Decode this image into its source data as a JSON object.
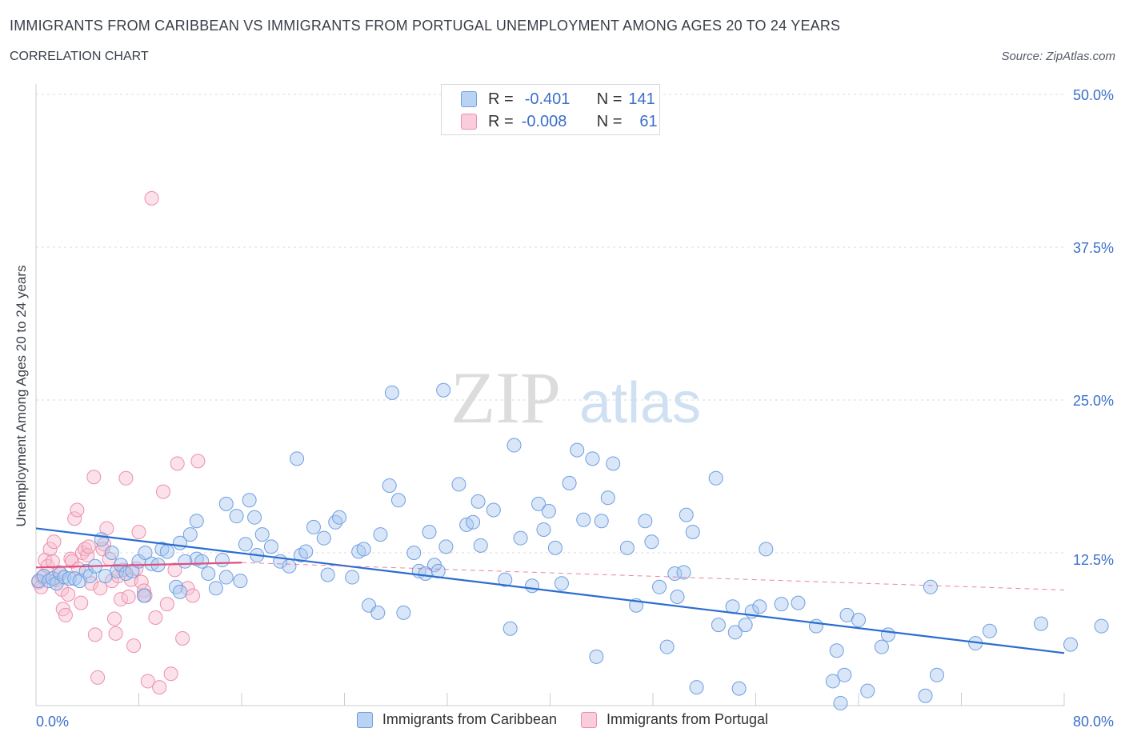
{
  "title": "IMMIGRANTS FROM CARIBBEAN VS IMMIGRANTS FROM PORTUGAL UNEMPLOYMENT AMONG AGES 20 TO 24 YEARS",
  "subtitle": "CORRELATION CHART",
  "source": "Source: ZipAtlas.com",
  "watermark": {
    "zip": "ZIP",
    "atlas": "atlas"
  },
  "legend_stats": [
    {
      "r_label": "R =",
      "r_value": "-0.401",
      "n_label": "N =",
      "n_value": "141"
    },
    {
      "r_label": "R =",
      "r_value": "-0.008",
      "n_label": "N =",
      "n_value": "61"
    }
  ],
  "colors": {
    "caribbean_fill": "#a8c8f0",
    "caribbean_stroke": "#6f9fe0",
    "caribbean_line": "#2a6dd0",
    "portugal_fill": "#f6bfd0",
    "portugal_stroke": "#ec8fac",
    "portugal_line": "#e0507e",
    "axis_text": "#3b6fc9",
    "grid": "#d8dbe0"
  },
  "chart_data": {
    "type": "scatter",
    "title": "IMMIGRANTS FROM CARIBBEAN VS IMMIGRANTS FROM PORTUGAL UNEMPLOYMENT AMONG AGES 20 TO 24 YEARS",
    "xlabel": "",
    "ylabel": "Unemployment Among Ages 20 to 24 years",
    "xlim": [
      0,
      80
    ],
    "ylim": [
      0,
      50
    ],
    "x_tick_labels": [
      "0.0%",
      "80.0%"
    ],
    "y_ticks": [
      12.5,
      25.0,
      37.5,
      50.0
    ],
    "y_tick_labels": [
      "12.5%",
      "25.0%",
      "37.5%",
      "50.0%"
    ],
    "grid": true,
    "legend": "top-center",
    "series": [
      {
        "name": "Immigrants from Caribbean",
        "trend": [
          [
            0,
            14.5
          ],
          [
            80,
            4.3
          ]
        ],
        "points": [
          [
            0.2,
            10.2
          ],
          [
            0.6,
            10.6
          ],
          [
            1.0,
            10.2
          ],
          [
            1.3,
            10.4
          ],
          [
            1.6,
            10.0
          ],
          [
            1.9,
            10.8
          ],
          [
            2.2,
            10.5
          ],
          [
            2.6,
            10.4
          ],
          [
            3.0,
            10.4
          ],
          [
            3.4,
            10.2
          ],
          [
            3.9,
            11.0
          ],
          [
            4.2,
            10.6
          ],
          [
            4.6,
            11.4
          ],
          [
            5.1,
            13.6
          ],
          [
            5.4,
            10.6
          ],
          [
            5.9,
            12.5
          ],
          [
            6.3,
            11.0
          ],
          [
            6.6,
            11.5
          ],
          [
            7.0,
            10.8
          ],
          [
            7.5,
            11.0
          ],
          [
            8.0,
            11.8
          ],
          [
            8.5,
            12.5
          ],
          [
            9.0,
            11.6
          ],
          [
            9.5,
            11.5
          ],
          [
            9.8,
            12.8
          ],
          [
            10.2,
            12.6
          ],
          [
            11.2,
            13.3
          ],
          [
            12.0,
            14.0
          ],
          [
            12.5,
            12.0
          ],
          [
            12.9,
            11.8
          ],
          [
            11.6,
            11.8
          ],
          [
            12.5,
            15.1
          ],
          [
            13.4,
            10.8
          ],
          [
            14.0,
            9.6
          ],
          [
            14.5,
            11.9
          ],
          [
            10.9,
            9.7
          ],
          [
            11.2,
            9.3
          ],
          [
            8.4,
            9.0
          ],
          [
            17.2,
            12.3
          ],
          [
            17.6,
            14.0
          ],
          [
            18.3,
            13.0
          ],
          [
            19.0,
            11.8
          ],
          [
            19.7,
            11.4
          ],
          [
            16.6,
            16.8
          ],
          [
            17.0,
            15.4
          ],
          [
            16.3,
            13.2
          ],
          [
            14.8,
            16.5
          ],
          [
            15.6,
            15.5
          ],
          [
            15.9,
            10.2
          ],
          [
            14.8,
            10.5
          ],
          [
            20.3,
            20.2
          ],
          [
            20.6,
            12.3
          ],
          [
            21.0,
            12.6
          ],
          [
            21.6,
            14.6
          ],
          [
            22.4,
            13.7
          ],
          [
            22.7,
            10.7
          ],
          [
            23.3,
            15.0
          ],
          [
            23.6,
            15.4
          ],
          [
            24.6,
            10.5
          ],
          [
            25.1,
            12.6
          ],
          [
            25.5,
            12.8
          ],
          [
            25.9,
            8.2
          ],
          [
            26.6,
            7.6
          ],
          [
            26.8,
            14.0
          ],
          [
            27.5,
            18.0
          ],
          [
            27.7,
            25.6
          ],
          [
            28.2,
            16.8
          ],
          [
            28.6,
            7.6
          ],
          [
            29.4,
            12.5
          ],
          [
            29.8,
            11.0
          ],
          [
            30.6,
            14.2
          ],
          [
            31.0,
            11.5
          ],
          [
            30.3,
            10.8
          ],
          [
            31.7,
            25.8
          ],
          [
            31.3,
            11.0
          ],
          [
            31.9,
            13.0
          ],
          [
            32.9,
            18.1
          ],
          [
            33.5,
            14.8
          ],
          [
            34.0,
            15.0
          ],
          [
            34.4,
            16.7
          ],
          [
            34.6,
            13.1
          ],
          [
            35.6,
            16.0
          ],
          [
            36.5,
            10.3
          ],
          [
            36.9,
            6.3
          ],
          [
            37.2,
            21.3
          ],
          [
            37.7,
            13.7
          ],
          [
            38.6,
            9.8
          ],
          [
            39.1,
            16.5
          ],
          [
            39.5,
            14.4
          ],
          [
            39.9,
            15.9
          ],
          [
            40.4,
            12.9
          ],
          [
            40.9,
            10.0
          ],
          [
            41.5,
            18.2
          ],
          [
            42.1,
            20.9
          ],
          [
            42.6,
            15.2
          ],
          [
            43.3,
            20.2
          ],
          [
            43.6,
            4.0
          ],
          [
            44.0,
            15.1
          ],
          [
            44.5,
            17.0
          ],
          [
            44.9,
            19.8
          ],
          [
            46.0,
            12.9
          ],
          [
            46.7,
            8.2
          ],
          [
            47.4,
            15.1
          ],
          [
            47.9,
            13.4
          ],
          [
            48.5,
            9.7
          ],
          [
            49.1,
            4.8
          ],
          [
            49.7,
            10.8
          ],
          [
            49.9,
            8.9
          ],
          [
            50.4,
            10.9
          ],
          [
            50.6,
            15.6
          ],
          [
            51.1,
            14.2
          ],
          [
            51.4,
            1.5
          ],
          [
            52.9,
            18.6
          ],
          [
            53.1,
            6.6
          ],
          [
            54.2,
            8.1
          ],
          [
            54.4,
            6.0
          ],
          [
            54.7,
            1.4
          ],
          [
            55.2,
            6.6
          ],
          [
            55.7,
            7.7
          ],
          [
            56.3,
            8.1
          ],
          [
            56.8,
            12.8
          ],
          [
            58.0,
            8.3
          ],
          [
            59.3,
            8.4
          ],
          [
            60.7,
            6.5
          ],
          [
            62.0,
            2.0
          ],
          [
            62.3,
            4.5
          ],
          [
            62.6,
            0.2
          ],
          [
            62.9,
            2.5
          ],
          [
            63.1,
            7.4
          ],
          [
            64.0,
            7.0
          ],
          [
            64.7,
            1.2
          ],
          [
            65.8,
            4.8
          ],
          [
            66.3,
            5.8
          ],
          [
            69.2,
            0.8
          ],
          [
            69.6,
            9.7
          ],
          [
            70.1,
            2.5
          ],
          [
            73.1,
            5.1
          ],
          [
            74.2,
            6.1
          ],
          [
            78.2,
            6.7
          ],
          [
            80.5,
            5.0
          ],
          [
            82.9,
            6.5
          ]
        ]
      },
      {
        "name": "Immigrants from Portugal",
        "trend": [
          [
            0,
            11.3
          ],
          [
            16,
            11.7
          ]
        ],
        "points": [
          [
            0.2,
            10.1
          ],
          [
            0.4,
            9.7
          ],
          [
            0.5,
            10.5
          ],
          [
            0.7,
            11.9
          ],
          [
            0.9,
            11.4
          ],
          [
            1.1,
            12.8
          ],
          [
            1.3,
            11.8
          ],
          [
            1.4,
            13.4
          ],
          [
            1.6,
            10.3
          ],
          [
            1.8,
            10.9
          ],
          [
            2.0,
            9.5
          ],
          [
            2.1,
            7.9
          ],
          [
            2.3,
            7.4
          ],
          [
            2.5,
            9.1
          ],
          [
            2.7,
            12.0
          ],
          [
            2.8,
            11.8
          ],
          [
            3.0,
            15.3
          ],
          [
            3.2,
            16.0
          ],
          [
            3.3,
            11.2
          ],
          [
            3.5,
            8.4
          ],
          [
            3.6,
            12.5
          ],
          [
            3.8,
            12.8
          ],
          [
            4.0,
            12.3
          ],
          [
            4.1,
            13.0
          ],
          [
            4.3,
            10.0
          ],
          [
            4.5,
            18.7
          ],
          [
            4.6,
            5.8
          ],
          [
            4.8,
            2.3
          ],
          [
            5.0,
            9.6
          ],
          [
            5.2,
            12.8
          ],
          [
            5.3,
            13.2
          ],
          [
            5.5,
            14.5
          ],
          [
            5.7,
            12.0
          ],
          [
            5.9,
            10.2
          ],
          [
            6.1,
            7.1
          ],
          [
            6.2,
            5.9
          ],
          [
            6.4,
            10.6
          ],
          [
            6.6,
            8.7
          ],
          [
            6.8,
            11.1
          ],
          [
            7.0,
            18.6
          ],
          [
            7.2,
            8.9
          ],
          [
            7.4,
            10.3
          ],
          [
            7.6,
            4.9
          ],
          [
            7.8,
            11.2
          ],
          [
            8.0,
            14.2
          ],
          [
            8.2,
            10.1
          ],
          [
            8.4,
            9.4
          ],
          [
            8.5,
            9.0
          ],
          [
            8.7,
            2.0
          ],
          [
            9.0,
            41.5
          ],
          [
            9.3,
            7.2
          ],
          [
            9.6,
            1.5
          ],
          [
            9.9,
            17.5
          ],
          [
            10.2,
            8.3
          ],
          [
            10.5,
            2.6
          ],
          [
            10.8,
            11.1
          ],
          [
            11.0,
            19.8
          ],
          [
            11.4,
            5.5
          ],
          [
            11.8,
            9.6
          ],
          [
            12.2,
            9.0
          ],
          [
            12.6,
            20.0
          ]
        ]
      }
    ]
  },
  "bottom_legend": [
    "Immigrants from Caribbean",
    "Immigrants from Portugal"
  ]
}
